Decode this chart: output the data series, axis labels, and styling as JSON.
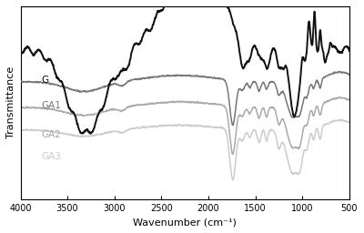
{
  "title": "",
  "xlabel": "Wavenumber (cm⁻¹)",
  "ylabel": "Transmittance",
  "xlim": [
    4000,
    500
  ],
  "series_labels": [
    "G",
    "GA1",
    "GA2",
    "GA3"
  ],
  "colors": [
    "#111111",
    "#777777",
    "#aaaaaa",
    "#cccccc"
  ],
  "linewidths": [
    1.4,
    1.1,
    1.1,
    1.1
  ],
  "background_color": "#ffffff",
  "xticks": [
    4000,
    3500,
    3000,
    2500,
    2000,
    1500,
    1000,
    500
  ]
}
